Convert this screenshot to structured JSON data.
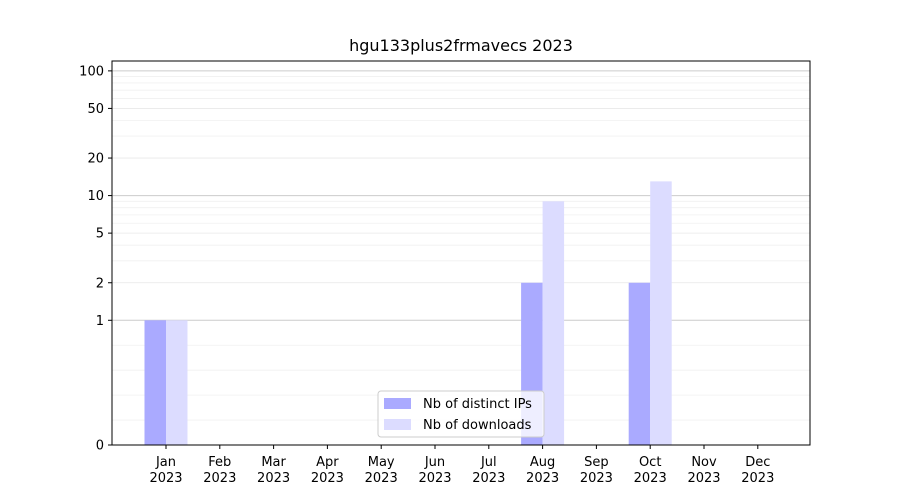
{
  "chart_data": {
    "type": "bar",
    "title": "hgu133plus2frmavecs 2023",
    "xlabel": "",
    "ylabel": "",
    "yscale": "symlog",
    "ylim": [
      0,
      120
    ],
    "yticks": [
      0,
      1,
      2,
      5,
      10,
      20,
      50,
      100
    ],
    "grid": true,
    "legend_position": "lower-center",
    "categories": [
      [
        "Jan",
        "2023"
      ],
      [
        "Feb",
        "2023"
      ],
      [
        "Mar",
        "2023"
      ],
      [
        "Apr",
        "2023"
      ],
      [
        "May",
        "2023"
      ],
      [
        "Jun",
        "2023"
      ],
      [
        "Jul",
        "2023"
      ],
      [
        "Aug",
        "2023"
      ],
      [
        "Sep",
        "2023"
      ],
      [
        "Oct",
        "2023"
      ],
      [
        "Nov",
        "2023"
      ],
      [
        "Dec",
        "2023"
      ]
    ],
    "series": [
      {
        "name": "Nb of distinct IPs",
        "color": "#aaaaff",
        "values": [
          1,
          0,
          0,
          0,
          0,
          0,
          0,
          2,
          0,
          2,
          0,
          0
        ]
      },
      {
        "name": "Nb of downloads",
        "color": "#dcdcff",
        "values": [
          1,
          0,
          0,
          0,
          0,
          0,
          0,
          9,
          0,
          13,
          0,
          0
        ]
      }
    ]
  }
}
